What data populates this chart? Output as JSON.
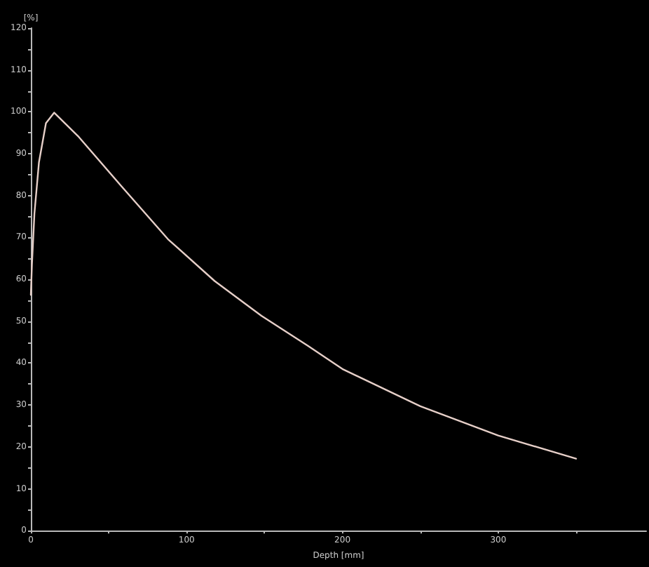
{
  "chart_data": {
    "type": "line",
    "xlabel": "Depth [mm]",
    "ylabel": "[%]",
    "x": [
      0,
      0.7,
      2.3,
      5.2,
      9.7,
      15,
      30.8,
      58,
      88,
      118,
      148,
      178,
      200,
      250,
      300,
      350
    ],
    "series": [
      {
        "color": "#e6cfc8",
        "values": [
          56.3,
          63.5,
          75.7,
          87.9,
          97.3,
          99.8,
          94,
          82.3,
          69.6,
          59.6,
          51.3,
          44.1,
          38.6,
          29.7,
          22.7,
          17.2
        ]
      }
    ],
    "xlim": [
      0,
      395
    ],
    "xticks": [
      0,
      {
        "value": 50,
        "label": null
      },
      100,
      {
        "value": 150,
        "label": null
      },
      200,
      {
        "value": 250,
        "label": null
      },
      300,
      {
        "value": 350,
        "label": null
      }
    ],
    "ylim": [
      0,
      120
    ],
    "yticks": [
      0,
      {
        "value": 5,
        "label": null
      },
      10,
      {
        "value": 15,
        "label": null
      },
      20,
      {
        "value": 25,
        "label": null
      },
      30,
      {
        "value": 35,
        "label": null
      },
      40,
      {
        "value": 45,
        "label": null
      },
      50,
      {
        "value": 55,
        "label": null
      },
      60,
      {
        "value": 65,
        "label": null
      },
      70,
      {
        "value": 75,
        "label": null
      },
      80,
      {
        "value": 85,
        "label": null
      },
      90,
      {
        "value": 95,
        "label": null
      },
      100,
      {
        "value": 105,
        "label": null
      },
      110,
      {
        "value": 115,
        "label": null
      },
      120
    ],
    "grid": false,
    "marker": "none",
    "line_style": "solid"
  }
}
